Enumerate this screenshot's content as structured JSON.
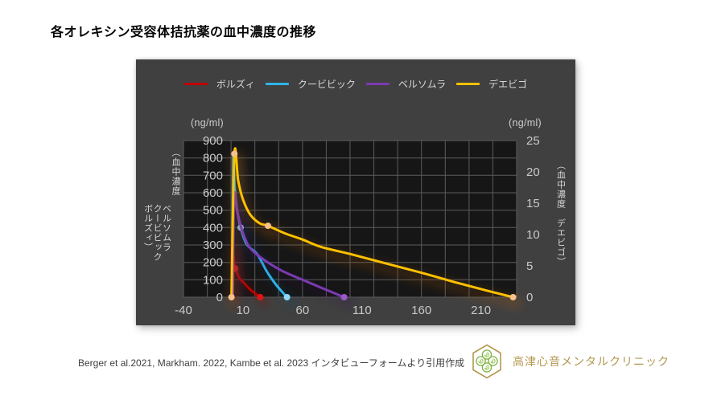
{
  "page": {
    "title": "各オレキシン受容体拮抗薬の血中濃度の推移"
  },
  "theme": {
    "panel_bg": "#404040",
    "plot_bg": "#161616",
    "grid_color": "#5c5c5c",
    "tick_color": "#c9c9c9",
    "axis_title_color": "#d9d9d9",
    "legend_text_color": "#d9d9d9",
    "title_color": "#050505",
    "footer_text_color": "#3f3f3f",
    "clinic_gold": "#b2974e",
    "clinic_green": "#7cb342"
  },
  "chart_data": {
    "type": "line",
    "title": "各オレキシン受容体拮抗薬の血中濃度の推移",
    "grid": true,
    "legend_position": "top",
    "x_axis": {
      "min": -40,
      "max": 240,
      "grid_step": 20,
      "tick_values": [
        -40,
        10,
        60,
        110,
        160,
        210
      ],
      "tick_labels": [
        "-40",
        "10",
        "60",
        "110",
        "160",
        "210"
      ]
    },
    "y_left": {
      "unit": "(ng/ml)",
      "min": 0,
      "max": 900,
      "step": 100,
      "title_lines": [
        "（血中濃度",
        "ベルソムラ",
        "クービビック",
        "ボルズィ）"
      ]
    },
    "y_right": {
      "unit": "(ng/ml)",
      "min": 0,
      "max": 25,
      "step": 5,
      "title": "（血中濃度　デエビゴ）"
    },
    "series": [
      {
        "name": "ボルズィ",
        "axis": "left",
        "color": "#c00000",
        "marker_color": "#e01616",
        "glow": {
          "dx": 5,
          "dy": 6,
          "blur": 5,
          "color": "#8a0e0e",
          "opacity": 0.6
        },
        "points": [
          [
            0.8,
            0
          ],
          [
            0.8,
            300
          ],
          [
            2,
            235
          ],
          [
            3.5,
            165
          ],
          [
            7,
            110
          ],
          [
            11.5,
            77
          ],
          [
            17,
            38
          ],
          [
            24.5,
            0
          ]
        ],
        "markers": [
          [
            3.5,
            165
          ],
          [
            24.5,
            0
          ]
        ]
      },
      {
        "name": "クービビック",
        "axis": "left",
        "color": "#2fb4ea",
        "marker_color": "#8fd7f5",
        "glow": {
          "dx": 6,
          "dy": 7,
          "blur": 6,
          "color": "#11506e",
          "opacity": 0.55
        },
        "points": [
          [
            1,
            0
          ],
          [
            1.7,
            800
          ],
          [
            3,
            640
          ],
          [
            5,
            505
          ],
          [
            8,
            400
          ],
          [
            13,
            305
          ],
          [
            22,
            246
          ],
          [
            30,
            148
          ],
          [
            38,
            70
          ],
          [
            47,
            0
          ]
        ],
        "markers": [
          [
            8,
            400
          ],
          [
            47,
            0
          ]
        ]
      },
      {
        "name": "ベルソムラ",
        "axis": "left",
        "color": "#7a3ab0",
        "marker_color": "#9b59c8",
        "glow": {
          "dx": 6,
          "dy": 7,
          "blur": 6,
          "color": "#341457",
          "opacity": 0.6
        },
        "points": [
          [
            1.5,
            0
          ],
          [
            2.5,
            575
          ],
          [
            5,
            500
          ],
          [
            9,
            390
          ],
          [
            15,
            292
          ],
          [
            25,
            228
          ],
          [
            42,
            154
          ],
          [
            60,
            100
          ],
          [
            78,
            48
          ],
          [
            95,
            0
          ]
        ],
        "markers": [
          [
            95,
            0
          ]
        ]
      },
      {
        "name": "デエビゴ",
        "axis": "right",
        "color": "#ffc000",
        "marker_color": "#f7c189",
        "glow": {
          "dx": 3,
          "dy": 7,
          "blur": 7,
          "color": "#c05f10",
          "opacity": 0.8
        },
        "points": [
          [
            0.3,
            0
          ],
          [
            2.8,
            22.9
          ],
          [
            6,
            18.6
          ],
          [
            10,
            15.6
          ],
          [
            16,
            13.2
          ],
          [
            24,
            11.8
          ],
          [
            31,
            11.4
          ],
          [
            45,
            10.2
          ],
          [
            60,
            9.2
          ],
          [
            76,
            8.0
          ],
          [
            100,
            6.9
          ],
          [
            130,
            5.4
          ],
          [
            160,
            3.9
          ],
          [
            190,
            2.3
          ],
          [
            215,
            1.05
          ],
          [
            237,
            0
          ]
        ],
        "markers": [
          [
            0.3,
            0
          ],
          [
            2.8,
            22.9
          ],
          [
            31,
            11.4
          ],
          [
            237,
            0
          ]
        ]
      }
    ]
  },
  "footer": {
    "citation": "Berger et al.2021, Markham. 2022, Kambe et al. 2023 インタビューフォームより引用作成",
    "clinic_name": "高津心音メンタルクリニック",
    "logo_icon": "clover-hexagon-icon"
  }
}
